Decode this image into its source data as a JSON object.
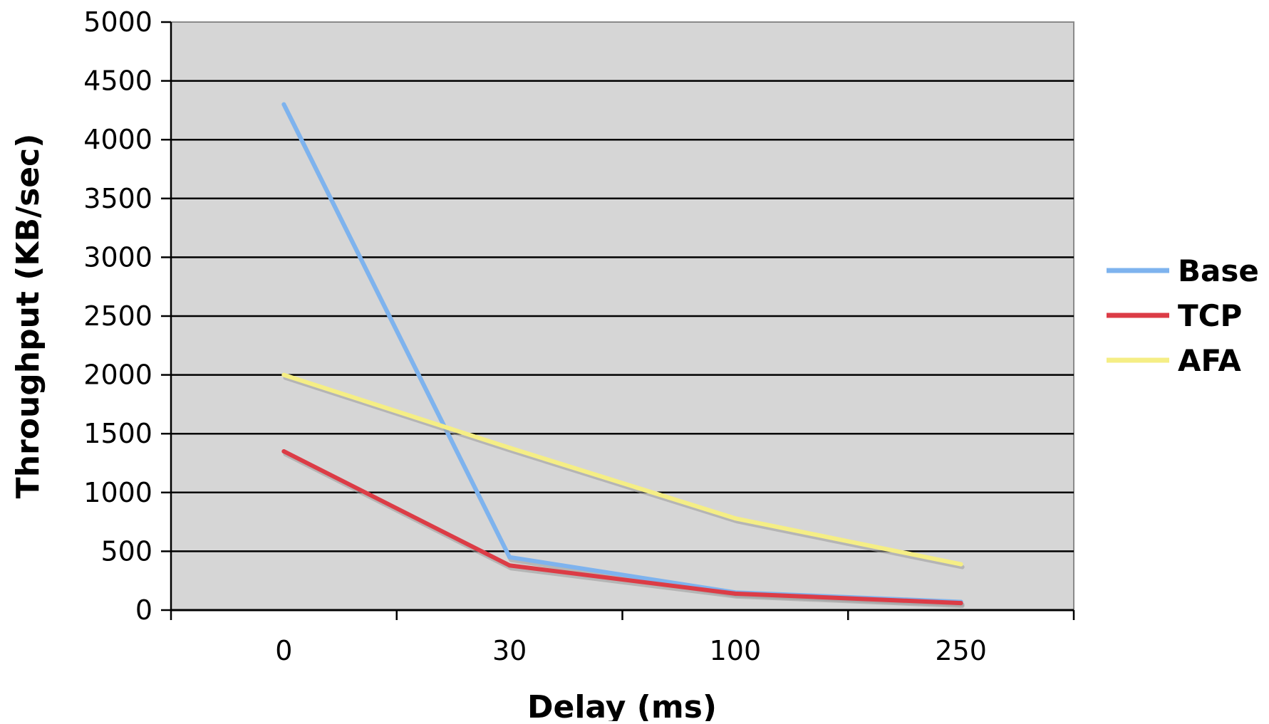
{
  "chart_data": {
    "type": "line",
    "title": "",
    "xlabel": "Delay (ms)",
    "ylabel": "Throughput (KB/sec)",
    "categories": [
      "0",
      "30",
      "100",
      "250"
    ],
    "ylim": [
      0,
      5000
    ],
    "yticks": [
      0,
      500,
      1000,
      1500,
      2000,
      2500,
      3000,
      3500,
      4000,
      4500,
      5000
    ],
    "grid": true,
    "legend_position": "right",
    "plot_background": "#d6d6d6",
    "series": [
      {
        "name": "Base",
        "color": "#7eb3ee",
        "values": [
          4300,
          450,
          150,
          70
        ]
      },
      {
        "name": "TCP",
        "color": "#dc3c46",
        "values": [
          1350,
          380,
          140,
          60
        ]
      },
      {
        "name": "AFA",
        "color": "#f5ee85",
        "values": [
          2000,
          1380,
          780,
          390
        ]
      }
    ]
  }
}
